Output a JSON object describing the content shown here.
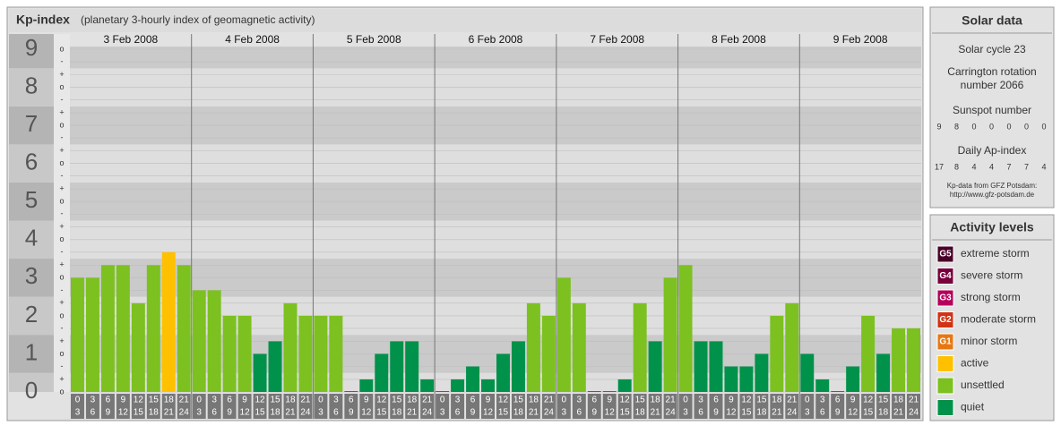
{
  "chart_data": {
    "type": "bar",
    "title": "Kp-index",
    "subtitle": "(planetary 3-hourly index of geomagnetic activity)",
    "days": [
      "3 Feb 2008",
      "4 Feb 2008",
      "5 Feb 2008",
      "6 Feb 2008",
      "7 Feb 2008",
      "8 Feb 2008",
      "9 Feb 2008"
    ],
    "hours": [
      [
        "0",
        "3"
      ],
      [
        "3",
        "6"
      ],
      [
        "6",
        "9"
      ],
      [
        "9",
        "12"
      ],
      [
        "12",
        "15"
      ],
      [
        "15",
        "18"
      ],
      [
        "18",
        "21"
      ],
      [
        "21",
        "24"
      ]
    ],
    "values": [
      3,
      3,
      3.33,
      3.33,
      2.33,
      3.33,
      3.67,
      3.33,
      2.67,
      2.67,
      2,
      2,
      1,
      1.33,
      2.33,
      2,
      2,
      2,
      0,
      0.33,
      1,
      1.33,
      1.33,
      0.33,
      0,
      0.33,
      0.67,
      0.33,
      1,
      1.33,
      2.33,
      2,
      3,
      2.33,
      0,
      0,
      0.33,
      2.33,
      1.33,
      3,
      3.33,
      1.33,
      1.33,
      0.67,
      0.67,
      1,
      2,
      2.33,
      1,
      0.33,
      0,
      0.67,
      2,
      1,
      1.67,
      1.67
    ],
    "colors": [
      "#7cc120",
      "#7cc120",
      "#7cc120",
      "#7cc120",
      "#7cc120",
      "#7cc120",
      "#ffc000",
      "#7cc120",
      "#7cc120",
      "#7cc120",
      "#7cc120",
      "#7cc120",
      "#00924a",
      "#00924a",
      "#7cc120",
      "#7cc120",
      "#7cc120",
      "#7cc120",
      "#00924a",
      "#00924a",
      "#00924a",
      "#00924a",
      "#00924a",
      "#00924a",
      "#00924a",
      "#00924a",
      "#00924a",
      "#00924a",
      "#00924a",
      "#00924a",
      "#7cc120",
      "#7cc120",
      "#7cc120",
      "#7cc120",
      "#00924a",
      "#00924a",
      "#00924a",
      "#7cc120",
      "#00924a",
      "#7cc120",
      "#7cc120",
      "#00924a",
      "#00924a",
      "#00924a",
      "#00924a",
      "#00924a",
      "#7cc120",
      "#7cc120",
      "#00924a",
      "#00924a",
      "#00924a",
      "#00924a",
      "#7cc120",
      "#00924a",
      "#7cc120",
      "#7cc120"
    ],
    "ylim": [
      0,
      9
    ],
    "yticks": [
      0,
      1,
      2,
      3,
      4,
      5,
      6,
      7,
      8,
      9
    ],
    "minor_ticks": [
      {
        "value": 0,
        "label": "o"
      },
      {
        "value": 0.33,
        "label": "+"
      },
      {
        "value": 0.67,
        "label": "-"
      },
      {
        "value": 1,
        "label": "o"
      },
      {
        "value": 1.33,
        "label": "+"
      },
      {
        "value": 1.67,
        "label": "-"
      },
      {
        "value": 2,
        "label": "o"
      },
      {
        "value": 2.33,
        "label": "+"
      },
      {
        "value": 2.67,
        "label": "-"
      },
      {
        "value": 3,
        "label": "o"
      },
      {
        "value": 3.33,
        "label": "+"
      },
      {
        "value": 3.67,
        "label": "-"
      },
      {
        "value": 4,
        "label": "o"
      },
      {
        "value": 4.33,
        "label": "+"
      },
      {
        "value": 4.67,
        "label": "-"
      },
      {
        "value": 5,
        "label": "o"
      },
      {
        "value": 5.33,
        "label": "+"
      },
      {
        "value": 5.67,
        "label": "-"
      },
      {
        "value": 6,
        "label": "o"
      },
      {
        "value": 6.33,
        "label": "+"
      },
      {
        "value": 6.67,
        "label": "-"
      },
      {
        "value": 7,
        "label": "o"
      },
      {
        "value": 7.33,
        "label": "+"
      },
      {
        "value": 7.67,
        "label": "-"
      },
      {
        "value": 8,
        "label": "o"
      },
      {
        "value": 8.33,
        "label": "+"
      },
      {
        "value": 8.67,
        "label": "-"
      },
      {
        "value": 9,
        "label": "o"
      }
    ],
    "grid": true
  },
  "solar": {
    "title": "Solar data",
    "cycle": "Solar cycle 23",
    "carrington": [
      "Carrington rotation",
      "number 2066"
    ],
    "sunspot_title": "Sunspot number",
    "sunspot": [
      9,
      8,
      0,
      0,
      0,
      0,
      0
    ],
    "ap_title": "Daily Ap-index",
    "ap": [
      17,
      8,
      4,
      4,
      7,
      7,
      4
    ],
    "source": [
      "Kp-data from GFZ Potsdam:",
      "http://www.gfz-potsdam.de"
    ]
  },
  "levels": {
    "title": "Activity levels",
    "items": [
      {
        "code": "G5",
        "name": "extreme storm",
        "color": "#4a0028"
      },
      {
        "code": "G4",
        "name": "severe storm",
        "color": "#78003c"
      },
      {
        "code": "G3",
        "name": "strong storm",
        "color": "#b4005a"
      },
      {
        "code": "G2",
        "name": "moderate storm",
        "color": "#d23214"
      },
      {
        "code": "G1",
        "name": "minor storm",
        "color": "#e67814"
      },
      {
        "code": null,
        "name": "active",
        "color": "#ffc000"
      },
      {
        "code": null,
        "name": "unsettled",
        "color": "#7cc120"
      },
      {
        "code": null,
        "name": "quiet",
        "color": "#00924a"
      }
    ]
  }
}
